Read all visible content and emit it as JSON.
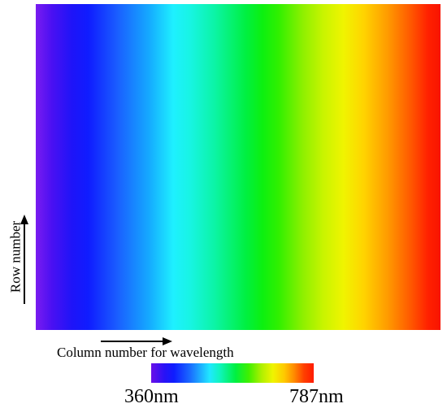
{
  "figure": {
    "row_axis_label": "Row number",
    "column_axis_label": "Column number for wavelength",
    "colorbar": {
      "min_label": "360nm",
      "max_label": "787nm"
    }
  },
  "colors": {
    "violet": "#7a1cf0",
    "blue": "#0f1cff",
    "cyan": "#1ef0ff",
    "green": "#00f040",
    "yellow": "#f0f400",
    "orange": "#ff9a00",
    "red": "#f81400"
  }
}
